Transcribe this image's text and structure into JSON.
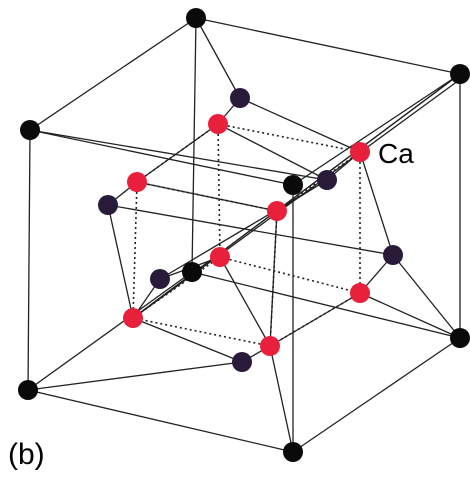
{
  "labels": {
    "atom": "Ca",
    "panel": "(b)"
  }
}
